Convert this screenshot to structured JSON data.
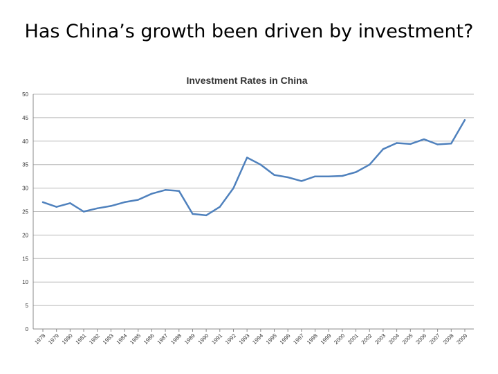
{
  "slide": {
    "title": "Has China’s growth been driven by investment?"
  },
  "colors": {
    "line": "#4F81BD",
    "grid": "#B8B8B8",
    "axis": "#888888",
    "text": "#333333"
  },
  "chart_data": {
    "type": "line",
    "title": "Investment Rates in China",
    "xlabel": "",
    "ylabel": "",
    "ylim": [
      0,
      50
    ],
    "yticks": [
      0,
      5,
      10,
      15,
      20,
      25,
      30,
      35,
      40,
      45,
      50
    ],
    "grid": true,
    "legend": "none",
    "categories": [
      "1978",
      "1979",
      "1980",
      "1981",
      "1982",
      "1983",
      "1984",
      "1985",
      "1986",
      "1987",
      "1988",
      "1989",
      "1990",
      "1991",
      "1992",
      "1993",
      "1994",
      "1995",
      "1996",
      "1997",
      "1998",
      "1999",
      "2000",
      "2001",
      "2002",
      "2003",
      "2004",
      "2005",
      "2006",
      "2007",
      "2008",
      "2009"
    ],
    "series": [
      {
        "values": [
          27.0,
          26.0,
          26.8,
          25.0,
          25.7,
          26.2,
          27.0,
          27.5,
          28.8,
          29.6,
          29.4,
          24.5,
          24.2,
          26.0,
          30.0,
          36.5,
          35.0,
          32.8,
          32.3,
          31.5,
          32.5,
          32.5,
          32.6,
          33.4,
          35.0,
          38.3,
          39.6,
          39.4,
          40.4,
          39.3,
          39.5,
          44.5
        ]
      }
    ]
  }
}
